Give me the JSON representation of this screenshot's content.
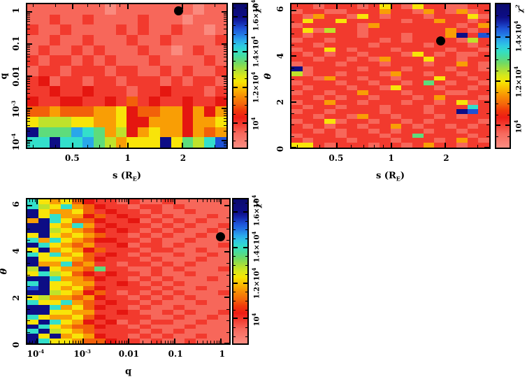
{
  "figure": {
    "background": "#ffffff",
    "description": "chi-squared parameter-space heatmaps"
  },
  "chart_data": {
    "type": "heatmap",
    "palette": {
      "0": {
        "color": "#fa8a7e",
        "chi2": 9200
      },
      "1": {
        "color": "#f7675a",
        "chi2": 9700
      },
      "2": {
        "color": "#f23a2e",
        "chi2": 10200
      },
      "3": {
        "color": "#e51610",
        "chi2": 10500
      },
      "4": {
        "color": "#f2600a",
        "chi2": 11000
      },
      "5": {
        "color": "#f99e05",
        "chi2": 11600
      },
      "6": {
        "color": "#f8e409",
        "chi2": 12300
      },
      "7": {
        "color": "#bfe22b",
        "chi2": 12900
      },
      "8": {
        "color": "#5edc7c",
        "chi2": 13400
      },
      "9": {
        "color": "#33dfcb",
        "chi2": 14000
      },
      "A": {
        "color": "#29a7ea",
        "chi2": 14600
      },
      "B": {
        "color": "#1e52d6",
        "chi2": 15100
      },
      "C": {
        "color": "#0d0d85",
        "chi2": 15700
      }
    },
    "colorbar_stops": [
      {
        "frac": 0.0,
        "color": "#fa8d82"
      },
      {
        "frac": 0.1,
        "color": "#f7685c"
      },
      {
        "frac": 0.165,
        "color": "#f23a2e"
      },
      {
        "frac": 0.21,
        "color": "#ee1c14"
      },
      {
        "frac": 0.26,
        "color": "#f13a0a"
      },
      {
        "frac": 0.3,
        "color": "#f4630a"
      },
      {
        "frac": 0.36,
        "color": "#f88f04"
      },
      {
        "frac": 0.42,
        "color": "#fac400"
      },
      {
        "frac": 0.46,
        "color": "#f6e603"
      },
      {
        "frac": 0.5,
        "color": "#d8e81a"
      },
      {
        "frac": 0.545,
        "color": "#a8df3a"
      },
      {
        "frac": 0.59,
        "color": "#70da64"
      },
      {
        "frac": 0.63,
        "color": "#4cdb96"
      },
      {
        "frac": 0.67,
        "color": "#33dfc4"
      },
      {
        "frac": 0.71,
        "color": "#2ec9e2"
      },
      {
        "frac": 0.75,
        "color": "#2aa6ec"
      },
      {
        "frac": 0.79,
        "color": "#2377e4"
      },
      {
        "frac": 0.83,
        "color": "#1e54d8"
      },
      {
        "frac": 0.875,
        "color": "#1426aa"
      },
      {
        "frac": 0.91,
        "color": "#0d0d86"
      },
      {
        "frac": 1.0,
        "color": "#0a0a6e"
      }
    ],
    "panels": [
      {
        "id": "panel-s-q",
        "x_axis": {
          "type": "log",
          "min": 0.28,
          "max": 3.5,
          "majors": [
            {
              "v": 0.5,
              "label": "0.5"
            },
            {
              "v": 1,
              "label": "1"
            },
            {
              "v": 2,
              "label": "2"
            }
          ]
        },
        "y_axis": {
          "type": "log",
          "min": 6e-05,
          "max": 1.7,
          "majors": [
            {
              "v": 1,
              "label": "1"
            },
            {
              "v": 0.1,
              "label": "0.1"
            },
            {
              "v": 0.01,
              "label": "0.01"
            },
            {
              "v": 0.001,
              "label": "10",
              "sup": "-3"
            },
            {
              "v": 0.0001,
              "label": "10",
              "sup": "-4"
            }
          ]
        },
        "x_title": {
          "pre": "s (R",
          "sub": "E",
          "post": ")"
        },
        "y_title": {
          "text": "q"
        },
        "colorbar": {
          "min": 8600,
          "max": 16700,
          "minor_step": 500,
          "majors": [
            {
              "v": 10000,
              "label": "10",
              "sup": "4"
            },
            {
              "v": 12000,
              "label": "1.2×10",
              "sup": "4"
            },
            {
              "v": 14000,
              "label": "1.4×10",
              "sup": "4"
            },
            {
              "v": 16000,
              "label": "1.6×10",
              "sup": "4"
            }
          ],
          "title": {
            "base": "χ",
            "sup": "2"
          }
        },
        "marker": {
          "fx": 0.76,
          "fy": 0.955,
          "s": 2,
          "q": 1
        },
        "grid_rows": [
          "111111101111111011",
          "112112111121110111",
          "211211112121121101",
          "112112111211211112",
          "121121211121101211",
          "212212121112111121",
          "122122212211212112",
          "231221221222121221",
          "223223222122322212",
          "322332232423223223",
          "445444556344553535",
          "677766556335553556",
          "C888A9857356553545",
          "99C99A875666C6879B"
        ]
      },
      {
        "id": "panel-s-theta",
        "x_axis": {
          "type": "log",
          "min": 0.28,
          "max": 3.5,
          "majors": [
            {
              "v": 0.5,
              "label": "0.5"
            },
            {
              "v": 1,
              "label": "1"
            },
            {
              "v": 2,
              "label": "2"
            }
          ]
        },
        "y_axis": {
          "type": "linear",
          "min": 0,
          "max": 6.28,
          "minor_step": 0.5,
          "majors": [
            {
              "v": 0,
              "label": "0"
            },
            {
              "v": 2,
              "label": "2"
            },
            {
              "v": 4,
              "label": "4"
            },
            {
              "v": 6,
              "label": "6"
            }
          ]
        },
        "x_title": {
          "pre": "s (R",
          "sub": "E",
          "post": ")"
        },
        "y_title": {
          "text": "θ",
          "italic": true
        },
        "colorbar": {
          "min": 9000,
          "max": 15500,
          "minor_step": 500,
          "majors": [
            {
              "v": 10000,
              "label": "10",
              "sup": "4"
            },
            {
              "v": 12000,
              "label": "1.2×10",
              "sup": "4"
            },
            {
              "v": 14000,
              "label": "1.4×10",
              "sup": "4"
            }
          ],
          "title": {
            "base": "χ",
            "sup": "2"
          }
        },
        "marker": {
          "fx": 0.756,
          "fy": 0.746,
          "s": 2,
          "theta": 4.65
        },
        "grid_rows": [
          "221222126216221122",
          "122112225221521512",
          "215221621222122261",
          "262262222212252212",
          "122222152222222125",
          "261722122222225212",
          "212222122212225C2B",
          "122122221212222172",
          "221222212222122212",
          "122621222122221221",
          "212122122216212112",
          "221221215222622122",
          "122212221222122521",
          "C12222122212221221",
          "712212221522122122",
          "221522122122262212",
          "122212212212821221",
          "212221221622212212",
          "122122522212221122",
          "221212212221252221",
          "122522122212212612",
          "212212221222122292",
          "122122221222122CB2",
          "221221522122212122",
          "122612212212122221",
          "212122122521221212",
          "221212212122122122",
          "122212221228222212",
          "212221222122212521",
          "662122212212522122"
        ]
      },
      {
        "id": "panel-q-theta",
        "x_axis": {
          "type": "log",
          "min": 6.2e-05,
          "max": 1.52,
          "majors": [
            {
              "v": 0.0001,
              "label": "10",
              "sup": "-4"
            },
            {
              "v": 0.001,
              "label": "10",
              "sup": "-3"
            },
            {
              "v": 0.01,
              "label": "0.01"
            },
            {
              "v": 0.1,
              "label": "0.1"
            },
            {
              "v": 1,
              "label": "1"
            }
          ]
        },
        "y_axis": {
          "type": "linear",
          "min": 0,
          "max": 6.28,
          "minor_step": 0.5,
          "majors": [
            {
              "v": 0,
              "label": "0"
            },
            {
              "v": 2,
              "label": "2"
            },
            {
              "v": 4,
              "label": "4"
            },
            {
              "v": 6,
              "label": "6"
            }
          ]
        },
        "x_title": {
          "pre": "q"
        },
        "y_title": {
          "text": "θ",
          "italic": true
        },
        "colorbar": {
          "min": 8600,
          "max": 16700,
          "minor_step": 500,
          "majors": [
            {
              "v": 10000,
              "label": "10",
              "sup": "4"
            },
            {
              "v": 12000,
              "label": "1.2×10",
              "sup": "4"
            },
            {
              "v": 14000,
              "label": "1.4×10",
              "sup": "4"
            },
            {
              "v": 16000,
              "label": "1.6×10",
              "sup": "4"
            }
          ],
          "title": {
            "base": "χ",
            "sup": "2"
          }
        },
        "marker": {
          "fx": 0.956,
          "fy": 0.738,
          "q": 1,
          "theta": 4.65
        },
        "grid_rows": [
          "965643221211211111",
          "976954322122121111",
          "C65564232212112111",
          "C69553423221211121",
          "5C9644322312121211",
          "CC6595232221212112",
          "CC7654323212121121",
          "6C6565422121211211",
          "959654332212112111",
          "C96545223122121112",
          "6C5653422212211211",
          "969564232121121121",
          "C66654322212111211",
          "C55945221221212111",
          "7C6554822112121112",
          "697643232212112111",
          "CC9554322121211121",
          "9C6655223212121111",
          "BC6564322221211211",
          "CC7653421212121112",
          "675545322121212111",
          "966954232212111211",
          "CC9564322121121111",
          "CC6655223211212112",
          "965564322221121121",
          "6C9653231212211211",
          "C96544322121112111",
          "9C7654222212121111",
          "C6C565322121211211",
          "C96654432212112111"
        ]
      }
    ]
  }
}
